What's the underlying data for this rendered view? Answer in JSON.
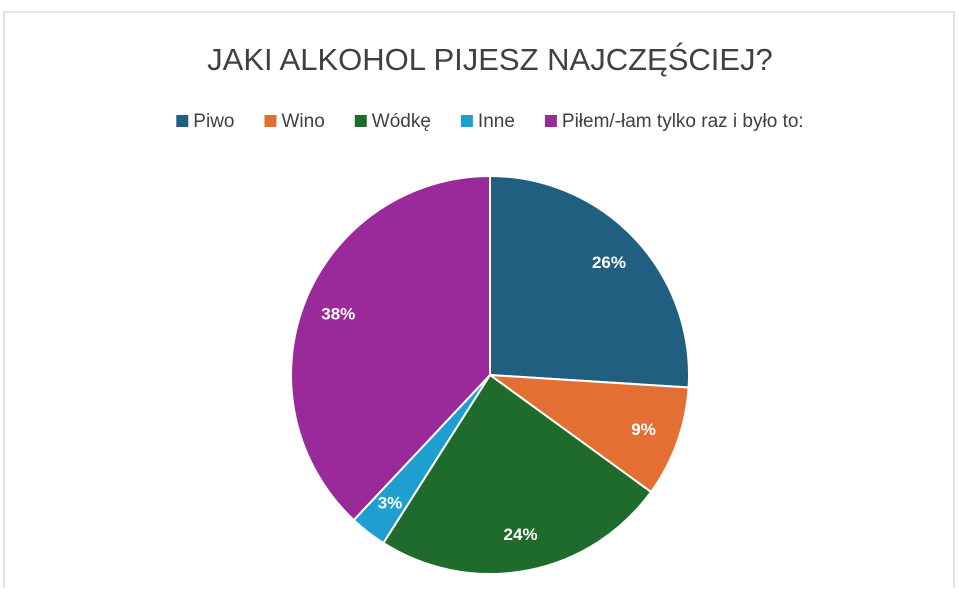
{
  "chart_data": {
    "type": "pie",
    "title": "JAKI ALKOHOL PIJESZ NAJCZĘŚCIEJ?",
    "categories": [
      "Piwo",
      "Wino",
      "Wódkę",
      "Inne",
      "Piłem/-łam tylko raz i było to:"
    ],
    "values": [
      26,
      9,
      24,
      3,
      38
    ],
    "value_labels": [
      "26%",
      "9%",
      "24%",
      "3%",
      "38%"
    ],
    "colors": [
      "#215f80",
      "#e46f33",
      "#1f6b2c",
      "#1f9fcf",
      "#9a2a9a"
    ],
    "legend": "top"
  }
}
